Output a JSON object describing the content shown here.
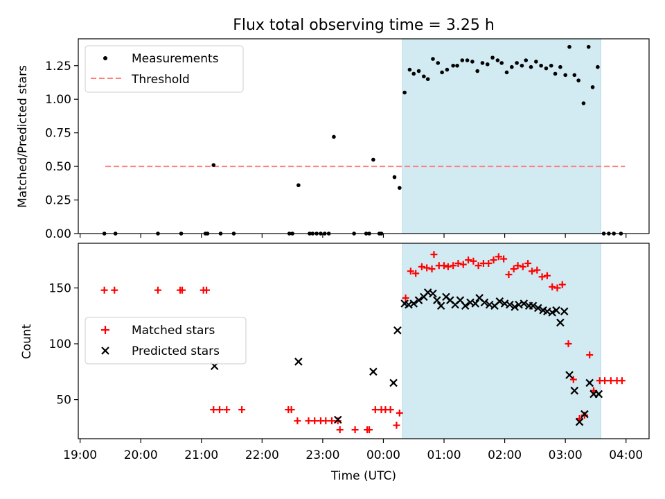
{
  "chart_data": [
    {
      "type": "scatter",
      "title": "Flux total observing time = 3.25 h",
      "xlabel": "",
      "ylabel": "Matched/Predicted stars",
      "xlim_hours": [
        18.97,
        28.38
      ],
      "ylim": [
        0,
        1.45
      ],
      "x_tick_labels": [],
      "y_ticks": [
        0,
        0.25,
        0.5,
        0.75,
        1.0,
        1.25
      ],
      "y_tick_labels": [
        "0.00",
        "0.25",
        "0.50",
        "0.75",
        "1.00",
        "1.25"
      ],
      "highlight_span": {
        "from": "00:19",
        "to": "03:35",
        "color": "#add8e6"
      },
      "threshold": {
        "value": 0.5,
        "from": "19:25",
        "to": "03:59",
        "color": "#ff7f7f"
      },
      "legend": {
        "position": "upper left",
        "entries": [
          "Measurements",
          "Threshold"
        ]
      },
      "series": [
        {
          "name": "Measurements",
          "color": "#000000",
          "points": [
            [
              "19:24",
              0
            ],
            [
              "19:35",
              0
            ],
            [
              "20:17",
              0
            ],
            [
              "20:40",
              0
            ],
            [
              "21:04",
              0.0
            ],
            [
              "21:06",
              0.0
            ],
            [
              "21:12",
              0.51
            ],
            [
              "21:19",
              0
            ],
            [
              "21:32",
              0
            ],
            [
              "22:27",
              0
            ],
            [
              "22:30",
              0
            ],
            [
              "22:36",
              0.36
            ],
            [
              "22:47",
              0
            ],
            [
              "22:50",
              0
            ],
            [
              "22:54",
              0
            ],
            [
              "22:58",
              0
            ],
            [
              "23:02",
              0
            ],
            [
              "23:06",
              0
            ],
            [
              "23:11",
              0.72
            ],
            [
              "23:31",
              0
            ],
            [
              "23:43",
              0
            ],
            [
              "23:46",
              0
            ],
            [
              "23:50",
              0.55
            ],
            [
              "23:56",
              0
            ],
            [
              "23:58",
              0
            ],
            [
              "00:11",
              0.42
            ],
            [
              "00:16",
              0.34
            ],
            [
              "00:21",
              1.05
            ],
            [
              "00:26",
              1.22
            ],
            [
              "00:30",
              1.19
            ],
            [
              "00:35",
              1.21
            ],
            [
              "00:40",
              1.17
            ],
            [
              "00:44",
              1.15
            ],
            [
              "00:49",
              1.3
            ],
            [
              "00:54",
              1.27
            ],
            [
              "00:58",
              1.2
            ],
            [
              "01:03",
              1.22
            ],
            [
              "01:09",
              1.25
            ],
            [
              "01:13",
              1.25
            ],
            [
              "01:18",
              1.29
            ],
            [
              "01:23",
              1.29
            ],
            [
              "01:28",
              1.28
            ],
            [
              "01:33",
              1.21
            ],
            [
              "01:38",
              1.27
            ],
            [
              "01:43",
              1.26
            ],
            [
              "01:48",
              1.31
            ],
            [
              "01:53",
              1.29
            ],
            [
              "01:57",
              1.27
            ],
            [
              "02:02",
              1.2
            ],
            [
              "02:07",
              1.24
            ],
            [
              "02:12",
              1.27
            ],
            [
              "02:17",
              1.25
            ],
            [
              "02:21",
              1.29
            ],
            [
              "02:26",
              1.24
            ],
            [
              "02:31",
              1.28
            ],
            [
              "02:36",
              1.25
            ],
            [
              "02:41",
              1.23
            ],
            [
              "02:46",
              1.25
            ],
            [
              "02:50",
              1.19
            ],
            [
              "02:55",
              1.24
            ],
            [
              "03:00",
              1.18
            ],
            [
              "03:04",
              1.39
            ],
            [
              "03:09",
              1.18
            ],
            [
              "03:13",
              1.14
            ],
            [
              "03:18",
              0.97
            ],
            [
              "03:23",
              1.39
            ],
            [
              "03:27",
              1.09
            ],
            [
              "03:32",
              1.24
            ],
            [
              "03:38",
              0.0
            ],
            [
              "03:43",
              0.0
            ],
            [
              "03:48",
              0.0
            ],
            [
              "03:55",
              0.0
            ]
          ]
        }
      ]
    },
    {
      "type": "scatter",
      "title": "",
      "xlabel": "Time (UTC)",
      "ylabel": "Count",
      "xlim_hours": [
        18.97,
        28.38
      ],
      "ylim": [
        15,
        190
      ],
      "x_ticks_hours": [
        19,
        20,
        21,
        22,
        23,
        24,
        25,
        26,
        27,
        28
      ],
      "x_tick_labels": [
        "19:00",
        "20:00",
        "21:00",
        "22:00",
        "23:00",
        "00:00",
        "01:00",
        "02:00",
        "03:00",
        "04:00"
      ],
      "y_ticks": [
        50,
        100,
        150
      ],
      "y_tick_labels": [
        "50",
        "100",
        "150"
      ],
      "highlight_span": {
        "from": "00:19",
        "to": "03:35",
        "color": "#add8e6"
      },
      "legend": {
        "position": "center left",
        "entries": [
          "Matched stars",
          "Predicted stars"
        ]
      },
      "series": [
        {
          "name": "Matched stars",
          "marker": "+",
          "color": "#ff0000",
          "points": [
            [
              "19:24",
              148
            ],
            [
              "19:34",
              148
            ],
            [
              "20:17",
              148
            ],
            [
              "20:39",
              148
            ],
            [
              "20:41",
              148
            ],
            [
              "21:02",
              148
            ],
            [
              "21:05",
              148
            ],
            [
              "21:12",
              41
            ],
            [
              "21:18",
              41
            ],
            [
              "21:25",
              41
            ],
            [
              "21:40",
              41
            ],
            [
              "22:26",
              41
            ],
            [
              "22:29",
              41
            ],
            [
              "22:35",
              31
            ],
            [
              "22:46",
              31
            ],
            [
              "22:52",
              31
            ],
            [
              "22:58",
              31
            ],
            [
              "23:03",
              31
            ],
            [
              "23:09",
              31
            ],
            [
              "23:15",
              31
            ],
            [
              "23:17",
              23
            ],
            [
              "23:32",
              23
            ],
            [
              "23:44",
              23
            ],
            [
              "23:46",
              23
            ],
            [
              "23:52",
              41
            ],
            [
              "23:58",
              41
            ],
            [
              "00:02",
              41
            ],
            [
              "00:07",
              41
            ],
            [
              "00:13",
              27
            ],
            [
              "00:16",
              38
            ],
            [
              "00:22",
              141
            ],
            [
              "00:27",
              165
            ],
            [
              "00:32",
              163
            ],
            [
              "00:38",
              169
            ],
            [
              "00:43",
              168
            ],
            [
              "00:48",
              167
            ],
            [
              "00:50",
              180
            ],
            [
              "00:55",
              170
            ],
            [
              "01:00",
              170
            ],
            [
              "01:04",
              169
            ],
            [
              "01:09",
              170
            ],
            [
              "01:14",
              172
            ],
            [
              "01:19",
              171
            ],
            [
              "01:24",
              175
            ],
            [
              "01:29",
              174
            ],
            [
              "01:34",
              170
            ],
            [
              "01:39",
              172
            ],
            [
              "01:44",
              172
            ],
            [
              "01:49",
              175
            ],
            [
              "01:54",
              178
            ],
            [
              "01:59",
              176
            ],
            [
              "02:04",
              162
            ],
            [
              "02:09",
              167
            ],
            [
              "02:13",
              170
            ],
            [
              "02:18",
              169
            ],
            [
              "02:23",
              172
            ],
            [
              "02:27",
              165
            ],
            [
              "02:32",
              166
            ],
            [
              "02:37",
              160
            ],
            [
              "02:42",
              161
            ],
            [
              "02:47",
              151
            ],
            [
              "02:52",
              150
            ],
            [
              "02:57",
              153
            ],
            [
              "03:03",
              100
            ],
            [
              "03:08",
              68
            ],
            [
              "03:14",
              33
            ],
            [
              "03:19",
              36
            ],
            [
              "03:24",
              90
            ],
            [
              "03:28",
              58
            ],
            [
              "03:34",
              67
            ],
            [
              "03:39",
              67
            ],
            [
              "03:45",
              67
            ],
            [
              "03:51",
              67
            ],
            [
              "03:56",
              67
            ]
          ]
        },
        {
          "name": "Predicted stars",
          "marker": "x",
          "color": "#000000",
          "points": [
            [
              "21:13",
              80
            ],
            [
              "22:36",
              84
            ],
            [
              "23:15",
              32
            ],
            [
              "23:50",
              75
            ],
            [
              "00:10",
              65
            ],
            [
              "00:14",
              112
            ],
            [
              "00:21",
              136
            ],
            [
              "00:25",
              135
            ],
            [
              "00:30",
              136
            ],
            [
              "00:35",
              139
            ],
            [
              "00:40",
              142
            ],
            [
              "00:44",
              146
            ],
            [
              "00:49",
              145
            ],
            [
              "00:53",
              139
            ],
            [
              "00:57",
              134
            ],
            [
              "01:02",
              142
            ],
            [
              "01:06",
              139
            ],
            [
              "01:11",
              135
            ],
            [
              "01:16",
              139
            ],
            [
              "01:21",
              134
            ],
            [
              "01:26",
              137
            ],
            [
              "01:31",
              136
            ],
            [
              "01:35",
              141
            ],
            [
              "01:40",
              137
            ],
            [
              "01:45",
              135
            ],
            [
              "01:50",
              134
            ],
            [
              "01:55",
              138
            ],
            [
              "02:00",
              136
            ],
            [
              "02:05",
              135
            ],
            [
              "02:10",
              133
            ],
            [
              "02:14",
              135
            ],
            [
              "02:19",
              136
            ],
            [
              "02:24",
              134
            ],
            [
              "02:28",
              134
            ],
            [
              "02:33",
              132
            ],
            [
              "02:38",
              130
            ],
            [
              "02:42",
              129
            ],
            [
              "02:47",
              128
            ],
            [
              "02:51",
              130
            ],
            [
              "02:55",
              119
            ],
            [
              "02:59",
              129
            ],
            [
              "03:04",
              72
            ],
            [
              "03:09",
              58
            ],
            [
              "03:14",
              30
            ],
            [
              "03:19",
              37
            ],
            [
              "03:24",
              65
            ],
            [
              "03:28",
              55
            ],
            [
              "03:33",
              55
            ]
          ]
        }
      ]
    }
  ]
}
